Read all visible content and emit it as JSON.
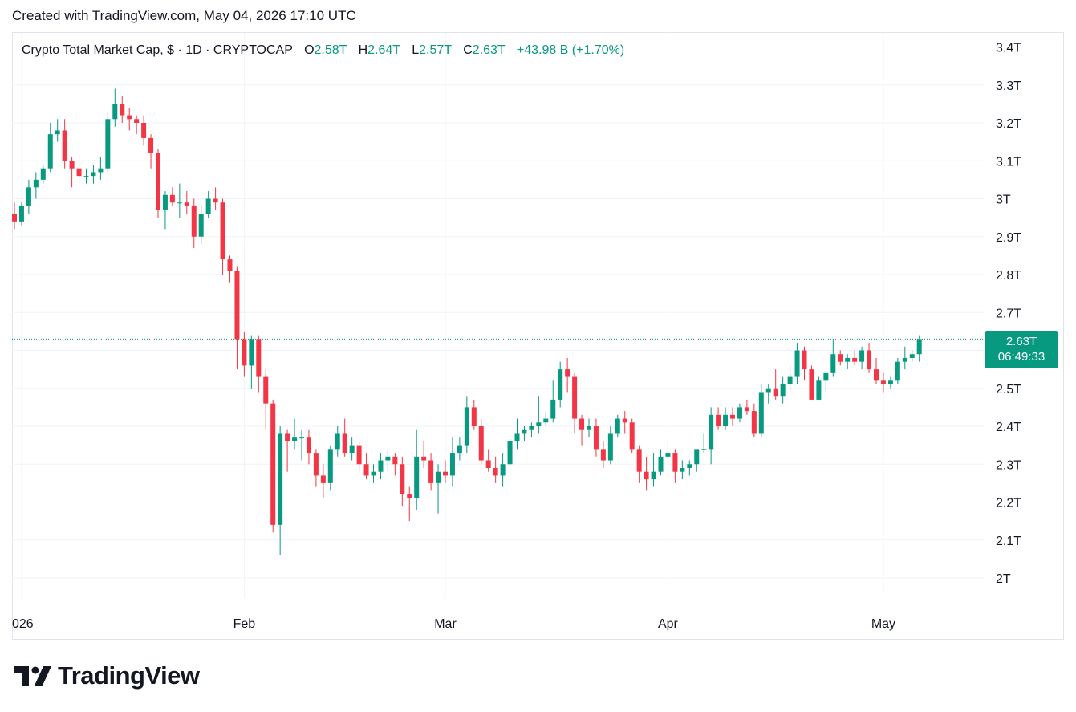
{
  "header": {
    "created": "Created with TradingView.com, May 04, 2026 17:10 UTC"
  },
  "legend": {
    "symbol": "Crypto Total Market Cap, $ · 1D · CRYPTOCAP",
    "o_label": "O",
    "o_value": "2.58T",
    "h_label": "H",
    "h_value": "2.64T",
    "l_label": "L",
    "l_value": "2.57T",
    "c_label": "C",
    "c_value": "2.63T",
    "change": "+43.98 B (+1.70%)"
  },
  "price_tag": {
    "price": "2.63T",
    "countdown": "06:49:33"
  },
  "brand": {
    "name": "TradingView"
  },
  "colors": {
    "up": "#089981",
    "down": "#f23645",
    "grid": "#f0f3fa",
    "text": "#131722"
  },
  "chart_data": {
    "type": "candlestick",
    "ylim": [
      1.92,
      3.48
    ],
    "y_ticks": [
      {
        "value": 3.4,
        "label": "3.4T"
      },
      {
        "value": 3.3,
        "label": "3.3T"
      },
      {
        "value": 3.2,
        "label": "3.2T"
      },
      {
        "value": 3.1,
        "label": "3.1T"
      },
      {
        "value": 3.0,
        "label": "3T"
      },
      {
        "value": 2.9,
        "label": "2.9T"
      },
      {
        "value": 2.8,
        "label": "2.8T"
      },
      {
        "value": 2.7,
        "label": "2.7T"
      },
      {
        "value": 2.5,
        "label": "2.5T"
      },
      {
        "value": 2.4,
        "label": "2.4T"
      },
      {
        "value": 2.3,
        "label": "2.3T"
      },
      {
        "value": 2.2,
        "label": "2.2T"
      },
      {
        "value": 2.1,
        "label": "2.1T"
      },
      {
        "value": 2.0,
        "label": "2T"
      }
    ],
    "x_ticks": [
      {
        "index": 1,
        "label": "026"
      },
      {
        "index": 32,
        "label": "Feb"
      },
      {
        "index": 60,
        "label": "Mar"
      },
      {
        "index": 91,
        "label": "Apr"
      },
      {
        "index": 121,
        "label": "May"
      }
    ],
    "last_price": 2.63,
    "candles": [
      [
        2.96,
        2.99,
        2.92,
        2.94
      ],
      [
        2.94,
        2.99,
        2.93,
        2.98
      ],
      [
        2.98,
        3.05,
        2.96,
        3.03
      ],
      [
        3.03,
        3.07,
        3.0,
        3.05
      ],
      [
        3.05,
        3.09,
        3.04,
        3.08
      ],
      [
        3.08,
        3.2,
        3.07,
        3.17
      ],
      [
        3.17,
        3.21,
        3.15,
        3.18
      ],
      [
        3.18,
        3.21,
        3.08,
        3.1
      ],
      [
        3.1,
        3.11,
        3.03,
        3.08
      ],
      [
        3.08,
        3.12,
        3.04,
        3.06
      ],
      [
        3.06,
        3.08,
        3.04,
        3.06
      ],
      [
        3.06,
        3.09,
        3.04,
        3.07
      ],
      [
        3.07,
        3.11,
        3.05,
        3.08
      ],
      [
        3.08,
        3.23,
        3.07,
        3.21
      ],
      [
        3.21,
        3.29,
        3.19,
        3.25
      ],
      [
        3.25,
        3.27,
        3.2,
        3.22
      ],
      [
        3.22,
        3.24,
        3.18,
        3.21
      ],
      [
        3.21,
        3.22,
        3.17,
        3.2
      ],
      [
        3.2,
        3.22,
        3.14,
        3.16
      ],
      [
        3.16,
        3.17,
        3.08,
        3.12
      ],
      [
        3.12,
        3.13,
        2.95,
        2.97
      ],
      [
        2.97,
        3.02,
        2.92,
        3.01
      ],
      [
        3.01,
        3.03,
        2.98,
        2.99
      ],
      [
        2.99,
        3.04,
        2.95,
        2.99
      ],
      [
        2.99,
        3.02,
        2.96,
        2.98
      ],
      [
        2.98,
        3.0,
        2.87,
        2.9
      ],
      [
        2.9,
        2.98,
        2.88,
        2.96
      ],
      [
        2.96,
        3.02,
        2.95,
        3.0
      ],
      [
        3.0,
        3.03,
        2.97,
        2.99
      ],
      [
        2.99,
        3.0,
        2.8,
        2.84
      ],
      [
        2.84,
        2.85,
        2.78,
        2.81
      ],
      [
        2.81,
        2.82,
        2.55,
        2.63
      ],
      [
        2.63,
        2.65,
        2.53,
        2.56
      ],
      [
        2.56,
        2.64,
        2.5,
        2.63
      ],
      [
        2.63,
        2.64,
        2.49,
        2.53
      ],
      [
        2.53,
        2.55,
        2.39,
        2.46
      ],
      [
        2.46,
        2.47,
        2.12,
        2.14
      ],
      [
        2.14,
        2.4,
        2.06,
        2.38
      ],
      [
        2.38,
        2.39,
        2.28,
        2.36
      ],
      [
        2.36,
        2.42,
        2.34,
        2.37
      ],
      [
        2.37,
        2.39,
        2.31,
        2.37
      ],
      [
        2.37,
        2.39,
        2.3,
        2.33
      ],
      [
        2.33,
        2.34,
        2.24,
        2.27
      ],
      [
        2.27,
        2.3,
        2.21,
        2.25
      ],
      [
        2.25,
        2.35,
        2.23,
        2.34
      ],
      [
        2.34,
        2.4,
        2.32,
        2.38
      ],
      [
        2.38,
        2.42,
        2.32,
        2.33
      ],
      [
        2.33,
        2.37,
        2.31,
        2.35
      ],
      [
        2.35,
        2.36,
        2.28,
        2.3
      ],
      [
        2.3,
        2.33,
        2.26,
        2.27
      ],
      [
        2.27,
        2.3,
        2.25,
        2.28
      ],
      [
        2.28,
        2.33,
        2.26,
        2.31
      ],
      [
        2.31,
        2.34,
        2.28,
        2.32
      ],
      [
        2.32,
        2.33,
        2.27,
        2.3
      ],
      [
        2.3,
        2.32,
        2.19,
        2.22
      ],
      [
        2.22,
        2.24,
        2.15,
        2.21
      ],
      [
        2.21,
        2.39,
        2.18,
        2.32
      ],
      [
        2.32,
        2.36,
        2.29,
        2.31
      ],
      [
        2.31,
        2.33,
        2.23,
        2.25
      ],
      [
        2.25,
        2.3,
        2.17,
        2.28
      ],
      [
        2.28,
        2.31,
        2.25,
        2.27
      ],
      [
        2.27,
        2.37,
        2.24,
        2.33
      ],
      [
        2.33,
        2.37,
        2.31,
        2.35
      ],
      [
        2.35,
        2.48,
        2.33,
        2.45
      ],
      [
        2.45,
        2.47,
        2.39,
        2.4
      ],
      [
        2.4,
        2.42,
        2.3,
        2.31
      ],
      [
        2.31,
        2.34,
        2.28,
        2.29
      ],
      [
        2.29,
        2.32,
        2.25,
        2.27
      ],
      [
        2.27,
        2.33,
        2.24,
        2.3
      ],
      [
        2.3,
        2.37,
        2.29,
        2.36
      ],
      [
        2.36,
        2.42,
        2.34,
        2.38
      ],
      [
        2.38,
        2.4,
        2.36,
        2.39
      ],
      [
        2.39,
        2.41,
        2.37,
        2.4
      ],
      [
        2.4,
        2.48,
        2.38,
        2.41
      ],
      [
        2.41,
        2.44,
        2.4,
        2.42
      ],
      [
        2.42,
        2.52,
        2.41,
        2.47
      ],
      [
        2.47,
        2.57,
        2.45,
        2.55
      ],
      [
        2.55,
        2.58,
        2.49,
        2.53
      ],
      [
        2.53,
        2.54,
        2.38,
        2.42
      ],
      [
        2.42,
        2.43,
        2.35,
        2.39
      ],
      [
        2.39,
        2.42,
        2.37,
        2.4
      ],
      [
        2.4,
        2.42,
        2.32,
        2.34
      ],
      [
        2.34,
        2.36,
        2.29,
        2.31
      ],
      [
        2.31,
        2.4,
        2.3,
        2.38
      ],
      [
        2.38,
        2.43,
        2.37,
        2.42
      ],
      [
        2.42,
        2.44,
        2.38,
        2.41
      ],
      [
        2.41,
        2.42,
        2.33,
        2.34
      ],
      [
        2.34,
        2.35,
        2.25,
        2.28
      ],
      [
        2.28,
        2.32,
        2.23,
        2.26
      ],
      [
        2.26,
        2.33,
        2.24,
        2.28
      ],
      [
        2.28,
        2.34,
        2.27,
        2.32
      ],
      [
        2.32,
        2.36,
        2.3,
        2.33
      ],
      [
        2.33,
        2.34,
        2.25,
        2.28
      ],
      [
        2.28,
        2.31,
        2.26,
        2.29
      ],
      [
        2.29,
        2.31,
        2.27,
        2.3
      ],
      [
        2.3,
        2.33,
        2.28,
        2.34
      ],
      [
        2.34,
        2.38,
        2.33,
        2.34
      ],
      [
        2.34,
        2.45,
        2.3,
        2.43
      ],
      [
        2.43,
        2.45,
        2.39,
        2.4
      ],
      [
        2.4,
        2.45,
        2.39,
        2.43
      ],
      [
        2.43,
        2.45,
        2.4,
        2.42
      ],
      [
        2.42,
        2.46,
        2.41,
        2.45
      ],
      [
        2.45,
        2.47,
        2.43,
        2.44
      ],
      [
        2.44,
        2.46,
        2.37,
        2.38
      ],
      [
        2.38,
        2.51,
        2.37,
        2.49
      ],
      [
        2.49,
        2.51,
        2.46,
        2.5
      ],
      [
        2.5,
        2.55,
        2.47,
        2.48
      ],
      [
        2.48,
        2.53,
        2.46,
        2.51
      ],
      [
        2.51,
        2.56,
        2.49,
        2.53
      ],
      [
        2.53,
        2.62,
        2.51,
        2.6
      ],
      [
        2.6,
        2.61,
        2.52,
        2.55
      ],
      [
        2.55,
        2.56,
        2.47,
        2.47
      ],
      [
        2.47,
        2.53,
        2.47,
        2.52
      ],
      [
        2.52,
        2.54,
        2.49,
        2.54
      ],
      [
        2.54,
        2.63,
        2.53,
        2.59
      ],
      [
        2.59,
        2.6,
        2.56,
        2.57
      ],
      [
        2.57,
        2.59,
        2.55,
        2.58
      ],
      [
        2.58,
        2.6,
        2.56,
        2.57
      ],
      [
        2.57,
        2.61,
        2.55,
        2.6
      ],
      [
        2.6,
        2.62,
        2.54,
        2.55
      ],
      [
        2.55,
        2.58,
        2.51,
        2.52
      ],
      [
        2.52,
        2.54,
        2.49,
        2.51
      ],
      [
        2.51,
        2.53,
        2.5,
        2.52
      ],
      [
        2.52,
        2.58,
        2.51,
        2.57
      ],
      [
        2.57,
        2.61,
        2.55,
        2.58
      ],
      [
        2.58,
        2.6,
        2.57,
        2.59
      ],
      [
        2.59,
        2.64,
        2.57,
        2.63
      ]
    ]
  }
}
